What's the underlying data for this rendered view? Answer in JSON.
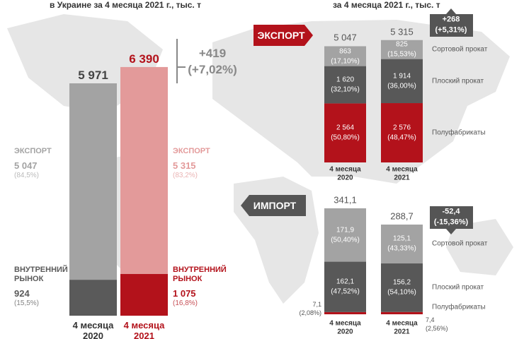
{
  "chart_data": [
    {
      "type": "stacked_bar",
      "title": "в Украине за 4 месяца 2021 г., тыс. т",
      "categories": [
        "4 месяца 2020",
        "4 месяца 2021"
      ],
      "series": [
        {
          "name": "ВНУТРЕННИЙ РЫНОК",
          "colors": [
            "#5a5a5a",
            "#b3121b"
          ],
          "values": [
            924,
            1075
          ],
          "value_labels": [
            "924",
            "1 075"
          ],
          "share_labels": [
            "(15,5%)",
            "(16,8%)"
          ]
        },
        {
          "name": "ЭКСПОРТ",
          "colors": [
            "#a3a3a3",
            "#e39a9a"
          ],
          "values": [
            5047,
            5315
          ],
          "value_labels": [
            "5 047",
            "5 315"
          ],
          "share_labels": [
            "(84,5%)",
            "(83,2%)"
          ]
        }
      ],
      "totals": [
        5971,
        6390
      ],
      "total_labels": [
        "5 971",
        "6 390"
      ],
      "change_labels": [
        "+419",
        "(+7,02%)"
      ]
    },
    {
      "type": "stacked_bar",
      "header": "ЭКСПОРТ",
      "title": "за 4 месяца 2021 г., тыс. т",
      "categories": [
        "4 месяца 2020",
        "4 месяца 2021"
      ],
      "series": [
        {
          "name": "Полуфабрикаты",
          "colors": [
            "#b3121b",
            "#b3121b"
          ],
          "values": [
            2564,
            2576
          ],
          "value_labels": [
            "2 564",
            "2 576"
          ],
          "share_labels": [
            "(50,80%)",
            "(48,47%)"
          ]
        },
        {
          "name": "Плоский прокат",
          "colors": [
            "#585858",
            "#585858"
          ],
          "values": [
            1620,
            1914
          ],
          "value_labels": [
            "1 620",
            "1 914"
          ],
          "share_labels": [
            "(32,10%)",
            "(36,00%)"
          ]
        },
        {
          "name": "Сортовой прокат",
          "colors": [
            "#a3a3a3",
            "#a3a3a3"
          ],
          "values": [
            863,
            825
          ],
          "value_labels": [
            "863",
            "825"
          ],
          "share_labels": [
            "(17,10%)",
            "(15,53%)"
          ]
        }
      ],
      "totals": [
        5047,
        5315
      ],
      "total_labels": [
        "5 047",
        "5 315"
      ],
      "change_labels": [
        "+268",
        "(+5,31%)"
      ]
    },
    {
      "type": "stacked_bar",
      "header": "ИМПОРТ",
      "categories": [
        "4 месяца 2020",
        "4 месяца 2021"
      ],
      "series": [
        {
          "name": "Полуфабрикаты",
          "colors": [
            "#b3121b",
            "#b3121b"
          ],
          "values": [
            7.1,
            7.4
          ],
          "value_labels": [
            "7,1",
            "7,4"
          ],
          "share_labels": [
            "(2,08%)",
            "(2,56%)"
          ]
        },
        {
          "name": "Плоский прокат",
          "colors": [
            "#585858",
            "#585858"
          ],
          "values": [
            162.1,
            156.2
          ],
          "value_labels": [
            "162,1",
            "156,2"
          ],
          "share_labels": [
            "(47,52%)",
            "(54,10%)"
          ]
        },
        {
          "name": "Сортовой прокат",
          "colors": [
            "#a3a3a3",
            "#a3a3a3"
          ],
          "values": [
            171.9,
            125.1
          ],
          "value_labels": [
            "171,9",
            "125,1"
          ],
          "share_labels": [
            "(50,40%)",
            "(43,33%)"
          ]
        }
      ],
      "totals": [
        341.1,
        288.7
      ],
      "total_labels": [
        "341,1",
        "288,7"
      ],
      "change_labels": [
        "-52,4",
        "(-15,36%)"
      ]
    }
  ]
}
